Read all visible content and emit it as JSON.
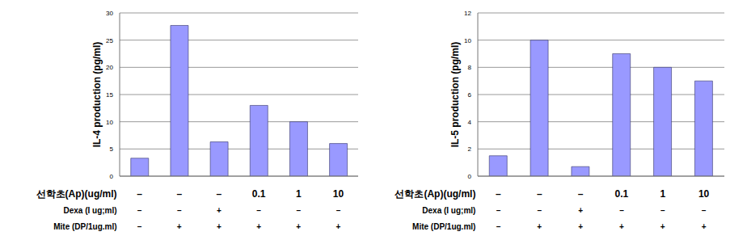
{
  "chart_data": [
    {
      "type": "bar",
      "y_label": "IL-4 production (pg/ml)",
      "categories": [
        null,
        null,
        null,
        null,
        null,
        null
      ],
      "values": [
        3.3,
        27.7,
        6.3,
        13,
        10,
        6
      ],
      "color": "#9999ff",
      "ylim": [
        0,
        30
      ],
      "yticks": [
        0,
        5,
        10,
        15,
        20,
        25,
        30
      ],
      "grid": true,
      "conditions": [
        {
          "label": "선학초(Ap)(ug/ml)",
          "values": [
            "–",
            "–",
            "–",
            "0.1",
            "1",
            "10"
          ]
        },
        {
          "label": "Dexa (I ug;ml)",
          "values": [
            "–",
            "–",
            "+",
            "–",
            "–",
            "–"
          ]
        },
        {
          "label": "Mite (DP/1ug.ml)",
          "values": [
            "–",
            "+",
            "+",
            "+",
            "+",
            "+"
          ]
        }
      ]
    },
    {
      "type": "bar",
      "y_label": "IL-5 production (pg/ml)",
      "categories": [
        null,
        null,
        null,
        null,
        null,
        null
      ],
      "values": [
        1.5,
        10,
        0.7,
        9,
        8,
        7
      ],
      "color": "#9999ff",
      "ylim": [
        0,
        12
      ],
      "yticks": [
        0,
        2,
        4,
        6,
        8,
        10,
        12
      ],
      "grid": true,
      "conditions": [
        {
          "label": "선학초(Ap)(ug/ml)",
          "values": [
            "–",
            "–",
            "–",
            "0.1",
            "1",
            "10"
          ]
        },
        {
          "label": "Dexa (I ug;ml)",
          "values": [
            "–",
            "–",
            "+",
            "–",
            "–",
            "–"
          ]
        },
        {
          "label": "Mite (DP/1ug.ml)",
          "values": [
            "–",
            "+",
            "+",
            "+",
            "+",
            "+"
          ]
        }
      ]
    }
  ]
}
